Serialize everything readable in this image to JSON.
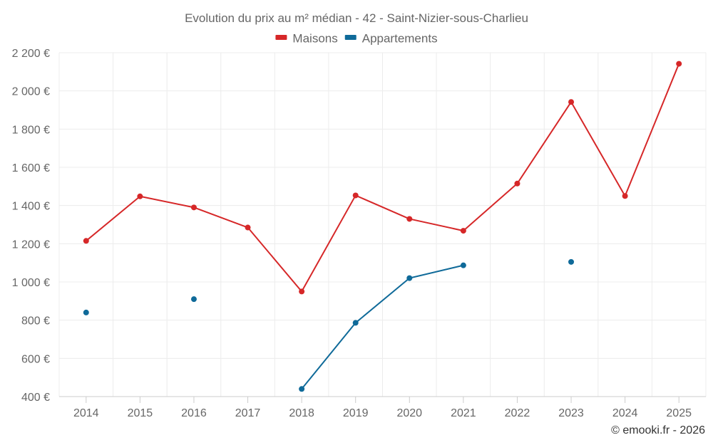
{
  "chart_data": {
    "type": "line",
    "title": "Evolution du prix au m² médian - 42 - Saint-Nizier-sous-Charlieu",
    "xlabel": "",
    "ylabel": "",
    "categories": [
      "2014",
      "2015",
      "2016",
      "2017",
      "2018",
      "2019",
      "2020",
      "2021",
      "2022",
      "2023",
      "2024",
      "2025"
    ],
    "ylim": [
      400,
      2200
    ],
    "yticks": [
      400,
      600,
      800,
      1000,
      1200,
      1400,
      1600,
      1800,
      2000,
      2200
    ],
    "ytick_labels": [
      "400 €",
      "600 €",
      "800 €",
      "1 000 €",
      "1 200 €",
      "1 400 €",
      "1 600 €",
      "1 800 €",
      "2 000 €",
      "2 200 €"
    ],
    "grid": true,
    "legend_position": "top-center",
    "series": [
      {
        "name": "Maisons",
        "color": "#d62728",
        "values": [
          1215,
          1448,
          1390,
          1285,
          950,
          1453,
          1330,
          1268,
          1515,
          1942,
          1450,
          2142
        ]
      },
      {
        "name": "Appartements",
        "color": "#0f6a99",
        "values": [
          840,
          null,
          910,
          null,
          440,
          786,
          1020,
          1087,
          null,
          1105,
          null,
          null
        ]
      }
    ]
  },
  "credit": "© emooki.fr - 2026"
}
